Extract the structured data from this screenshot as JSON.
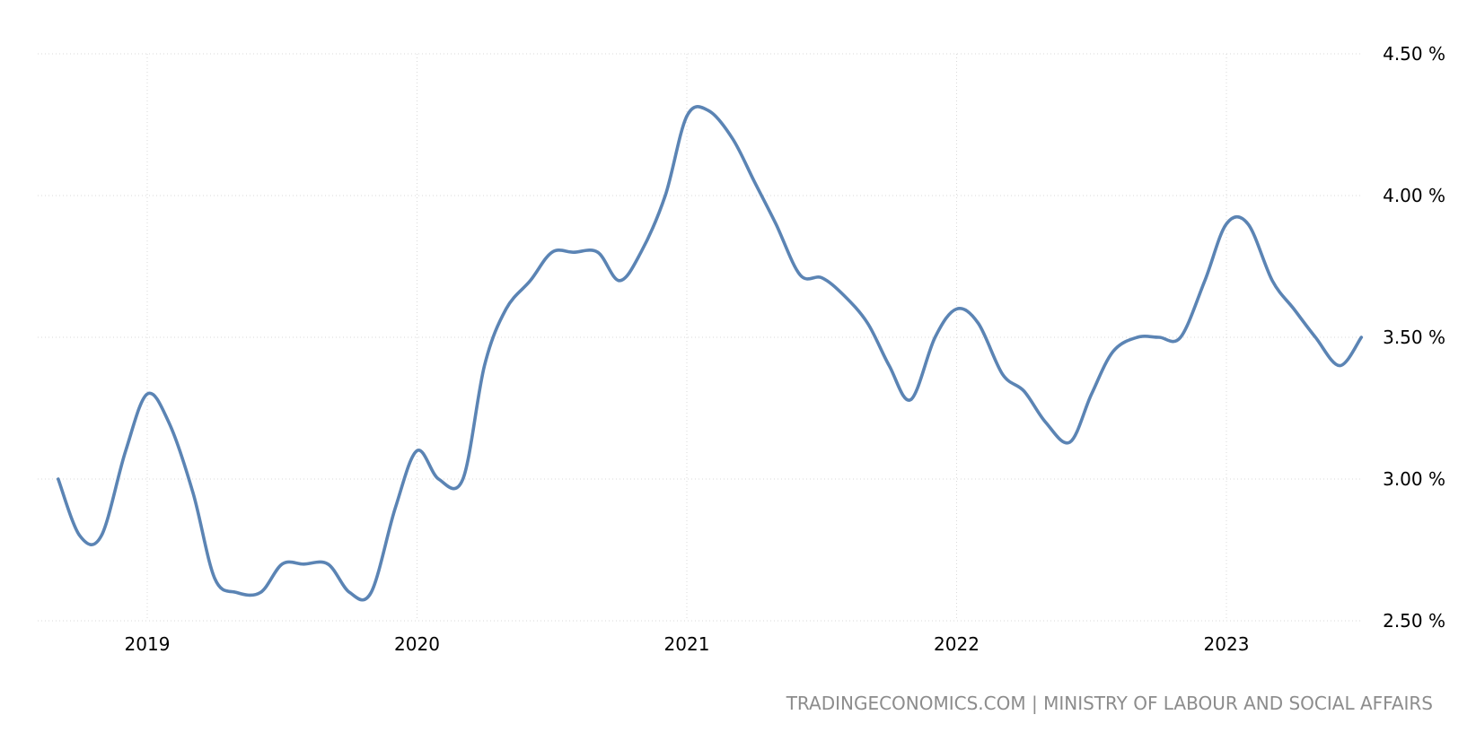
{
  "source_text": "TRADINGECONOMICS.COM | MINISTRY OF LABOUR AND SOCIAL AFFAIRS",
  "colors": {
    "line": "#5b84b4",
    "grid": "#d9d9d9",
    "source": "#8c8c8c"
  },
  "chart_data": {
    "type": "line",
    "title": "",
    "xlabel": "",
    "ylabel": "",
    "xlim": [
      2018.6,
      2023.6
    ],
    "ylim": [
      2.5,
      4.5
    ],
    "grid": true,
    "y_axis_position": "right",
    "y_ticks": [
      2.5,
      3.0,
      3.5,
      4.0,
      4.5
    ],
    "y_tick_labels": [
      "2.50 %",
      "3.00 %",
      "3.50 %",
      "4.00 %",
      "4.50 %"
    ],
    "x_ticks": [
      2019,
      2020,
      2021,
      2022,
      2023
    ],
    "x_tick_labels": [
      "2019",
      "2020",
      "2021",
      "2022",
      "2023"
    ],
    "series": [
      {
        "x": [
          2018.67,
          2018.75,
          2018.83,
          2018.92,
          2019.0,
          2019.08,
          2019.17,
          2019.25,
          2019.33,
          2019.42,
          2019.5,
          2019.58,
          2019.67,
          2019.75,
          2019.83,
          2019.92,
          2020.0,
          2020.08,
          2020.17,
          2020.25,
          2020.33,
          2020.42,
          2020.5,
          2020.58,
          2020.67,
          2020.75,
          2020.83,
          2020.92,
          2021.0,
          2021.08,
          2021.17,
          2021.25,
          2021.33,
          2021.42,
          2021.5,
          2021.58,
          2021.67,
          2021.75,
          2021.83,
          2021.92,
          2022.0,
          2022.08,
          2022.17,
          2022.25,
          2022.33,
          2022.42,
          2022.5,
          2022.58,
          2022.67,
          2022.75,
          2022.83,
          2022.92,
          2023.0,
          2023.08,
          2023.17,
          2023.25,
          2023.33,
          2023.42,
          2023.5
        ],
        "values": [
          3.0,
          2.8,
          2.8,
          3.1,
          3.3,
          3.2,
          2.95,
          2.65,
          2.6,
          2.6,
          2.7,
          2.7,
          2.7,
          2.6,
          2.6,
          2.9,
          3.1,
          3.0,
          3.0,
          3.4,
          3.6,
          3.7,
          3.8,
          3.8,
          3.8,
          3.7,
          3.8,
          4.0,
          4.28,
          4.3,
          4.2,
          4.05,
          3.9,
          3.72,
          3.71,
          3.65,
          3.55,
          3.4,
          3.28,
          3.5,
          3.6,
          3.55,
          3.37,
          3.31,
          3.2,
          3.13,
          3.3,
          3.45,
          3.5,
          3.5,
          3.5,
          3.7,
          3.9,
          3.9,
          3.7,
          3.6,
          3.5,
          3.4,
          3.5
        ]
      }
    ]
  }
}
